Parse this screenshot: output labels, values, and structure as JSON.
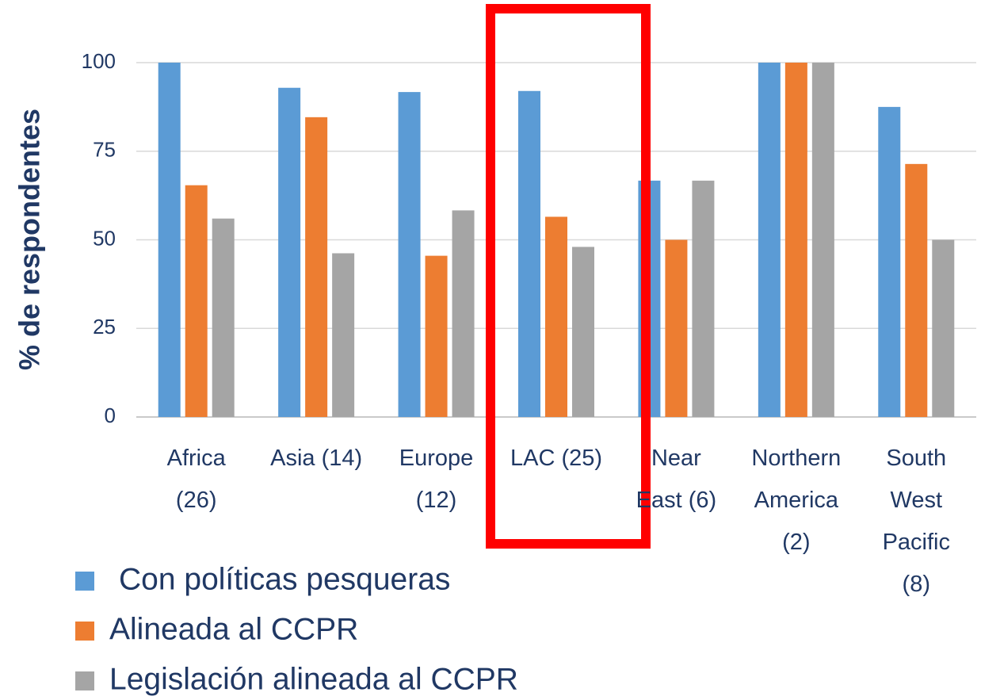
{
  "chart_data": {
    "type": "bar",
    "y_label": "% de respondentes",
    "categories": [
      "Africa\n(26)",
      "Asia (14)",
      "Europe\n(12)",
      "LAC (25)",
      "Near\nEast (6)",
      "Northern\nAmerica\n(2)",
      "South\nWest\nPacific\n(8)"
    ],
    "series": [
      {
        "name": "Con políticas pesqueras",
        "color": "#5b9bd5",
        "values": [
          100,
          92.9,
          91.7,
          92,
          66.7,
          100,
          87.5
        ]
      },
      {
        "name": "Alineada al CCPR",
        "color": "#ed7d31",
        "values": [
          65.4,
          84.6,
          45.5,
          56.5,
          50,
          100,
          71.4
        ]
      },
      {
        "name": "Legislación alineada al CCPR",
        "color": "#a5a5a5",
        "values": [
          56,
          46.2,
          58.3,
          48,
          66.7,
          100,
          50
        ]
      }
    ],
    "ylim": [
      0,
      100
    ],
    "yticks": [
      0,
      25,
      50,
      75,
      100
    ],
    "grid": true
  }
}
